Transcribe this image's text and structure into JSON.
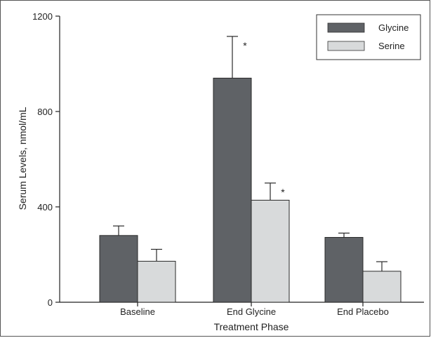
{
  "chart_data": {
    "type": "bar",
    "title": "",
    "xlabel": "Treatment Phase",
    "ylabel": "Serum Levels, nmol/mL",
    "ylim": [
      0,
      1200
    ],
    "yticks": [
      0,
      400,
      800,
      1200
    ],
    "grid": false,
    "legend_position": "top-right",
    "categories": [
      "Baseline",
      "End Glycine",
      "End Placebo"
    ],
    "series": [
      {
        "name": "Glycine",
        "color": "#5f6266",
        "values": [
          280,
          940,
          272
        ],
        "errors": [
          40,
          175,
          18
        ],
        "annotations": [
          "",
          "*",
          ""
        ]
      },
      {
        "name": "Serine",
        "color": "#d8dadb",
        "values": [
          172,
          428,
          130
        ],
        "errors": [
          50,
          72,
          40
        ],
        "annotations": [
          "",
          "*",
          ""
        ]
      }
    ]
  }
}
